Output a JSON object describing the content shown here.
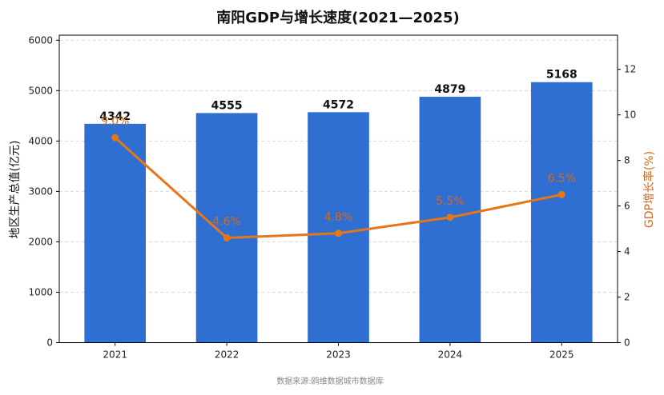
{
  "chart_data": {
    "type": "bar",
    "title": "南阳GDP与增长速度(2021—2025)",
    "categories": [
      "2021",
      "2022",
      "2023",
      "2024",
      "2025"
    ],
    "series": [
      {
        "values": [
          4342,
          4555,
          4572,
          4879,
          5168
        ],
        "color": "#2f6fd1",
        "axis": "left",
        "value_labels": [
          "4342",
          "4555",
          "4572",
          "4879",
          "5168"
        ]
      },
      {
        "type": "line",
        "values": [
          9.0,
          4.6,
          4.8,
          5.5,
          6.5
        ],
        "color": "#e6761a",
        "axis": "right",
        "value_labels": [
          "9.0%",
          "4.6%",
          "4.8%",
          "5.5%",
          "6.5%"
        ]
      }
    ],
    "y_left": {
      "label": "地区生产总值(亿元)",
      "ylim": [
        0,
        6100
      ],
      "ticks": [
        "0",
        "1000",
        "2000",
        "3000",
        "4000",
        "5000",
        "6000"
      ]
    },
    "y_right": {
      "label": "GDP增长率(%)",
      "ylim": [
        0,
        13.5
      ],
      "ticks": [
        "0",
        "2",
        "4",
        "6",
        "8",
        "10",
        "12"
      ]
    },
    "grid": "horizontal dashed",
    "source": "数据来源:鸥维数据城市数据库"
  }
}
